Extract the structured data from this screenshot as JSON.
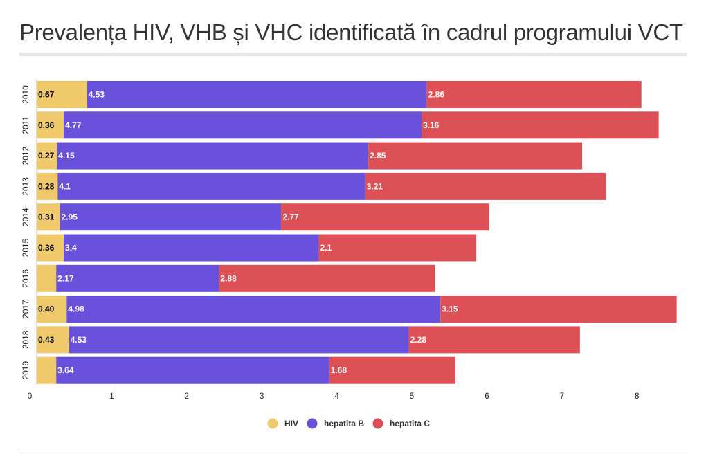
{
  "header": {
    "title": "Prevalența HIV, VHB și VHC identificată în cadrul programului VCT"
  },
  "chart_data": {
    "type": "bar",
    "orientation": "horizontal",
    "stacked": true,
    "title": "Prevalența HIV, VHB și VHC identificată în cadrul programului VCT",
    "categories": [
      "2010",
      "2011",
      "2012",
      "2013",
      "2014",
      "2015",
      "2016",
      "2017",
      "2018",
      "2019"
    ],
    "series": [
      {
        "name": "HIV",
        "color": "#f0c96b",
        "label_color": "#000000",
        "values": [
          0.67,
          0.36,
          0.27,
          0.28,
          0.31,
          0.36,
          0.26,
          0.4,
          0.43,
          0.26
        ],
        "labels": [
          "0.67",
          "0.36",
          "0.27",
          "0.28",
          "0.31",
          "0.36",
          "",
          "0.40",
          "0.43",
          ""
        ]
      },
      {
        "name": "hepatita B",
        "color": "#6a51dc",
        "label_color": "#ffffff",
        "values": [
          4.53,
          4.77,
          4.15,
          4.1,
          2.95,
          3.4,
          2.17,
          4.98,
          4.53,
          3.64
        ],
        "labels": [
          "4.53",
          "4.77",
          "4.15",
          "4.1",
          "2.95",
          "3.4",
          "2.17",
          "4.98",
          "4.53",
          "3.64"
        ]
      },
      {
        "name": "hepatita C",
        "color": "#dd5156",
        "label_color": "#ffffff",
        "values": [
          2.86,
          3.16,
          2.85,
          3.21,
          2.77,
          2.1,
          2.88,
          3.15,
          2.28,
          1.68
        ],
        "labels": [
          "2.86",
          "3.16",
          "2.85",
          "3.21",
          "2.77",
          "2.1",
          "2.88",
          "3.15",
          "2.28",
          "1.68"
        ]
      }
    ],
    "xlim": [
      0,
      8.6
    ],
    "xticks": [
      0,
      1,
      2,
      3,
      4,
      5,
      6,
      7,
      8
    ],
    "grid": false,
    "legend": "bottom"
  }
}
